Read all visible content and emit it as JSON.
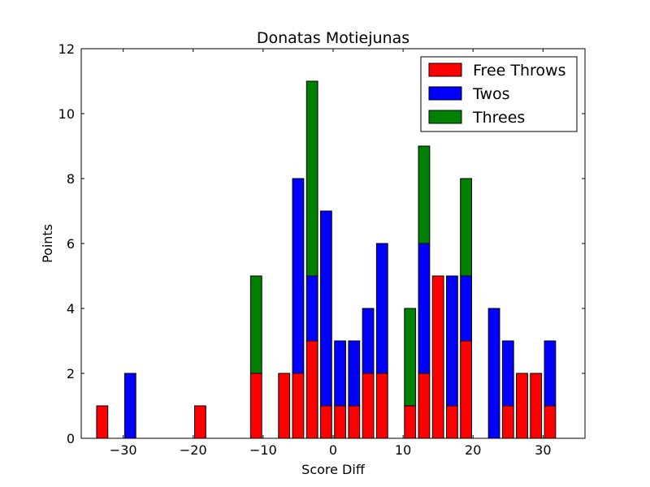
{
  "chart_data": {
    "type": "bar",
    "stacked": true,
    "title": "Donatas Motiejunas",
    "xlabel": "Score Diff",
    "ylabel": "Points",
    "xlim": [
      -36,
      36
    ],
    "ylim": [
      0,
      12
    ],
    "xticks": [
      -30,
      -20,
      -10,
      0,
      10,
      20,
      30
    ],
    "xtick_labels": [
      "−30",
      "−20",
      "−10",
      "0",
      "10",
      "20",
      "30"
    ],
    "yticks": [
      0,
      2,
      4,
      6,
      8,
      10,
      12
    ],
    "ytick_labels": [
      "0",
      "2",
      "4",
      "6",
      "8",
      "10",
      "12"
    ],
    "legend_position": "top-right",
    "x": [
      -35,
      -33,
      -31,
      -29,
      -27,
      -25,
      -23,
      -21,
      -19,
      -17,
      -15,
      -13,
      -11,
      -9,
      -7,
      -5,
      -3,
      -1,
      1,
      3,
      5,
      7,
      9,
      11,
      13,
      15,
      17,
      19,
      21,
      23,
      25,
      27,
      29,
      31,
      33,
      35
    ],
    "series": [
      {
        "name": "Free Throws",
        "color": "#ff0000",
        "values": [
          0,
          1,
          0,
          0,
          0,
          0,
          0,
          0,
          1,
          0,
          0,
          0,
          2,
          0,
          2,
          2,
          3,
          1,
          1,
          1,
          2,
          2,
          0,
          1,
          2,
          5,
          1,
          3,
          0,
          0,
          1,
          2,
          2,
          1,
          0,
          0
        ]
      },
      {
        "name": "Twos",
        "color": "#0000ff",
        "values": [
          0,
          0,
          0,
          2,
          0,
          0,
          0,
          0,
          0,
          0,
          0,
          0,
          0,
          0,
          0,
          6,
          2,
          6,
          2,
          2,
          2,
          4,
          0,
          0,
          4,
          0,
          4,
          2,
          0,
          4,
          2,
          0,
          0,
          2,
          0,
          0
        ]
      },
      {
        "name": "Threes",
        "color": "#008000",
        "values": [
          0,
          0,
          0,
          0,
          0,
          0,
          0,
          0,
          0,
          0,
          0,
          0,
          3,
          0,
          0,
          0,
          6,
          0,
          0,
          0,
          0,
          0,
          0,
          3,
          3,
          0,
          0,
          3,
          0,
          0,
          0,
          0,
          0,
          0,
          0,
          0
        ]
      }
    ]
  }
}
